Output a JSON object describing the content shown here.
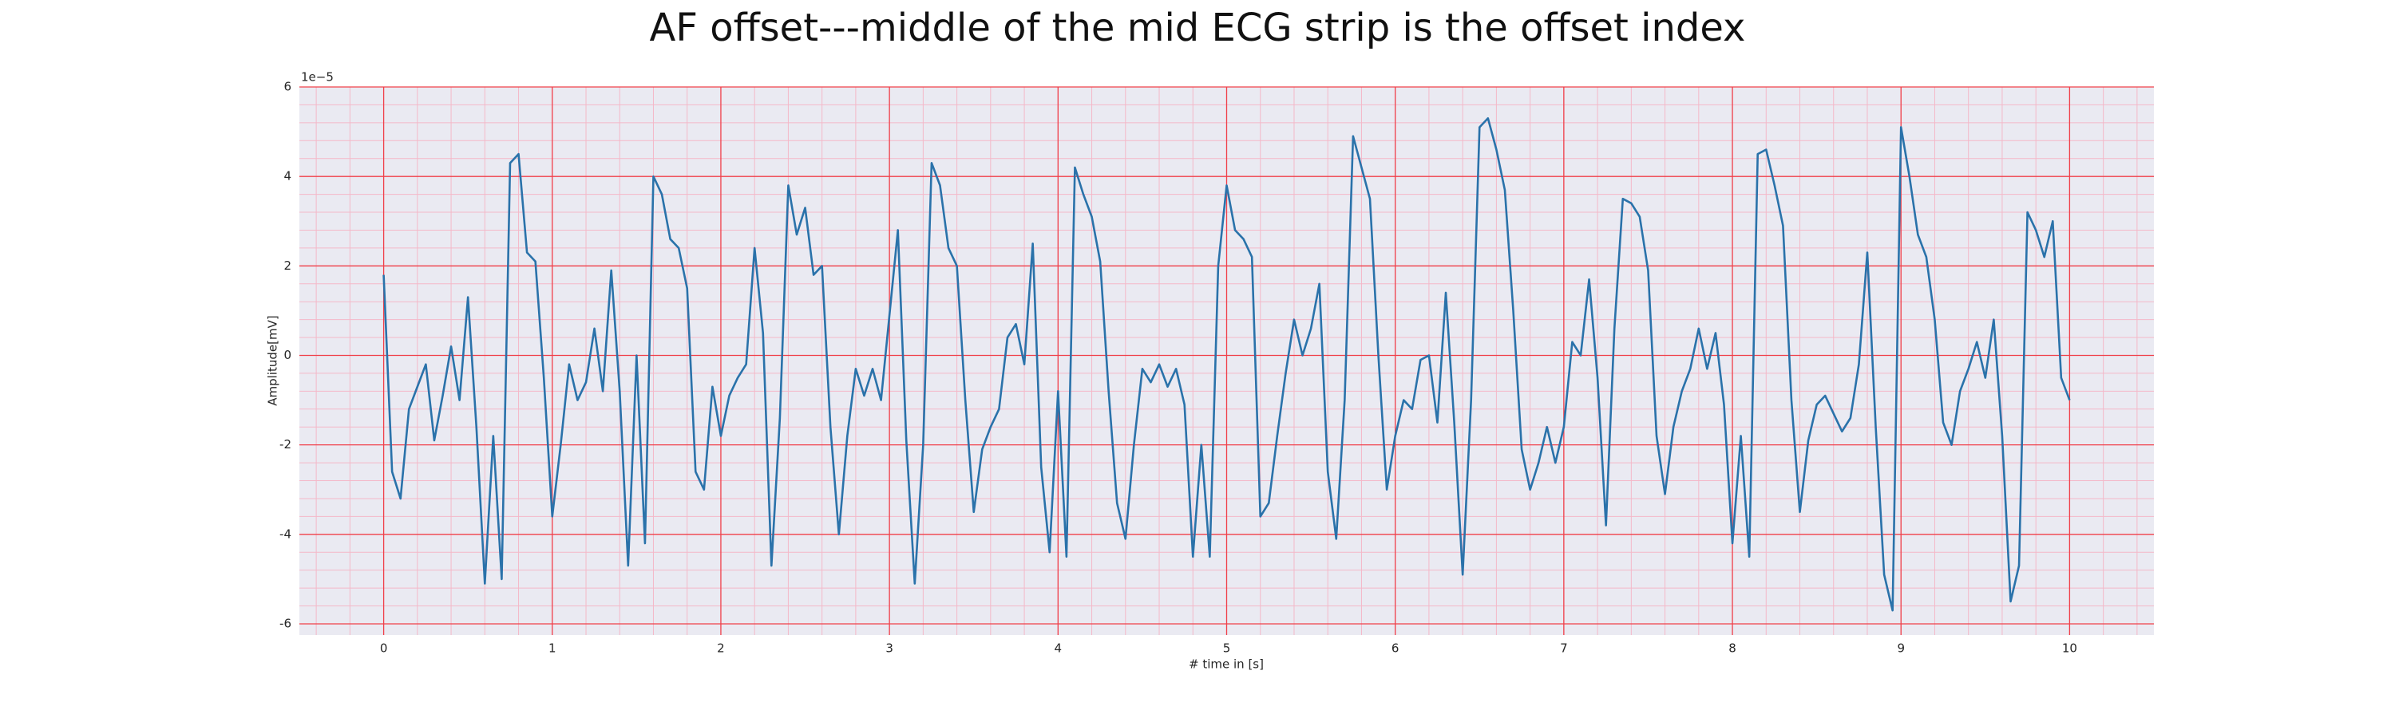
{
  "chart_data": {
    "type": "line",
    "title": "AF offset---middle of the mid ECG strip is the offset index",
    "xlabel": "# time in [s]",
    "ylabel": "Amplitude[mV]",
    "y_offset_label": "1e−5",
    "color": "#2a72aa",
    "grid": true,
    "minor_grid": true,
    "xlim": [
      -0.5,
      10.5
    ],
    "ylim": [
      -6.25,
      6.0
    ],
    "xticks": [
      0,
      1,
      2,
      3,
      4,
      5,
      6,
      7,
      8,
      9,
      10
    ],
    "yticks": [
      -6,
      -4,
      -2,
      0,
      2,
      4,
      6
    ],
    "x": [
      0,
      0.05,
      0.1,
      0.15,
      0.2,
      0.25,
      0.3,
      0.35,
      0.4,
      0.45,
      0.5,
      0.55,
      0.6,
      0.65,
      0.7,
      0.75,
      0.8,
      0.85,
      0.9,
      0.95,
      1,
      1.05,
      1.1,
      1.15,
      1.2,
      1.25,
      1.3,
      1.35,
      1.4,
      1.45,
      1.5,
      1.55,
      1.6,
      1.65,
      1.7,
      1.75,
      1.8,
      1.85,
      1.9,
      1.95,
      2,
      2.05,
      2.1,
      2.15,
      2.2,
      2.25,
      2.3,
      2.35,
      2.4,
      2.45,
      2.5,
      2.55,
      2.6,
      2.65,
      2.7,
      2.75,
      2.8,
      2.85,
      2.9,
      2.95,
      3,
      3.05,
      3.1,
      3.15,
      3.2,
      3.25,
      3.3,
      3.35,
      3.4,
      3.45,
      3.5,
      3.55,
      3.6,
      3.65,
      3.7,
      3.75,
      3.8,
      3.85,
      3.9,
      3.95,
      4,
      4.05,
      4.1,
      4.15,
      4.2,
      4.25,
      4.3,
      4.35,
      4.4,
      4.45,
      4.5,
      4.55,
      4.6,
      4.65,
      4.7,
      4.75,
      4.8,
      4.85,
      4.9,
      4.95,
      5,
      5.05,
      5.1,
      5.15,
      5.2,
      5.25,
      5.3,
      5.35,
      5.4,
      5.45,
      5.5,
      5.55,
      5.6,
      5.65,
      5.7,
      5.75,
      5.8,
      5.85,
      5.9,
      5.95,
      6,
      6.05,
      6.1,
      6.15,
      6.2,
      6.25,
      6.3,
      6.35,
      6.4,
      6.45,
      6.5,
      6.55,
      6.6,
      6.65,
      6.7,
      6.75,
      6.8,
      6.85,
      6.9,
      6.95,
      7,
      7.05,
      7.1,
      7.15,
      7.2,
      7.25,
      7.3,
      7.35,
      7.4,
      7.45,
      7.5,
      7.55,
      7.6,
      7.65,
      7.7,
      7.75,
      7.8,
      7.85,
      7.9,
      7.95,
      8,
      8.05,
      8.1,
      8.15,
      8.2,
      8.25,
      8.3,
      8.35,
      8.4,
      8.45,
      8.5,
      8.55,
      8.6,
      8.65,
      8.7,
      8.75,
      8.8,
      8.85,
      8.9,
      8.95,
      9,
      9.05,
      9.1,
      9.15,
      9.2,
      9.25,
      9.3,
      9.35,
      9.4,
      9.45,
      9.5,
      9.55,
      9.6,
      9.65,
      9.7,
      9.75,
      9.8,
      9.85,
      9.9,
      9.95,
      10
    ],
    "values": [
      1.8,
      -2.6,
      -3.2,
      -1.2,
      -0.7,
      -0.2,
      -1.9,
      -0.9,
      0.2,
      -1.0,
      1.3,
      -1.6,
      -5.1,
      -1.8,
      -5.0,
      4.3,
      4.5,
      2.3,
      2.1,
      -0.5,
      -3.6,
      -2.0,
      -0.2,
      -1.0,
      -0.6,
      0.6,
      -0.8,
      1.9,
      -0.8,
      -4.7,
      0.0,
      -4.2,
      4.0,
      3.6,
      2.6,
      2.4,
      1.5,
      -2.6,
      -3.0,
      -0.7,
      -1.8,
      -0.9,
      -0.5,
      -0.2,
      2.4,
      0.5,
      -4.7,
      -1.4,
      3.8,
      2.7,
      3.3,
      1.8,
      2.0,
      -1.6,
      -4.0,
      -1.8,
      -0.3,
      -0.9,
      -0.3,
      -1.0,
      0.9,
      2.8,
      -1.9,
      -5.1,
      -2.0,
      4.3,
      3.8,
      2.4,
      2.0,
      -1.0,
      -3.5,
      -2.1,
      -1.6,
      -1.2,
      0.4,
      0.7,
      -0.2,
      2.5,
      -2.5,
      -4.4,
      -0.8,
      -4.5,
      4.2,
      3.6,
      3.1,
      2.1,
      -0.8,
      -3.3,
      -4.1,
      -2.0,
      -0.3,
      -0.6,
      -0.2,
      -0.7,
      -0.3,
      -1.1,
      -4.5,
      -2.0,
      -4.5,
      2.0,
      3.8,
      2.8,
      2.6,
      2.2,
      -3.6,
      -3.3,
      -1.8,
      -0.4,
      0.8,
      0.0,
      0.6,
      1.6,
      -2.6,
      -4.1,
      -1.0,
      4.9,
      4.2,
      3.5,
      0.0,
      -3.0,
      -1.8,
      -1.0,
      -1.2,
      -0.1,
      0.0,
      -1.5,
      1.4,
      -1.5,
      -4.9,
      -1.0,
      5.1,
      5.3,
      4.6,
      3.7,
      1.0,
      -2.1,
      -3.0,
      -2.4,
      -1.6,
      -2.4,
      -1.6,
      0.3,
      0.0,
      1.7,
      -0.5,
      -3.8,
      0.6,
      3.5,
      3.4,
      3.1,
      1.9,
      -1.8,
      -3.1,
      -1.6,
      -0.8,
      -0.3,
      0.6,
      -0.3,
      0.5,
      -1.1,
      -4.2,
      -1.8,
      -4.5,
      4.5,
      4.6,
      3.8,
      2.9,
      -1.0,
      -3.5,
      -1.9,
      -1.1,
      -0.9,
      -1.3,
      -1.7,
      -1.4,
      -0.2,
      2.3,
      -1.6,
      -4.9,
      -5.7,
      5.1,
      4.0,
      2.7,
      2.2,
      0.8,
      -1.5,
      -2.0,
      -0.8,
      -0.3,
      0.3,
      -0.5,
      0.8,
      -1.8,
      -5.5,
      -4.7,
      3.2,
      2.8,
      2.2,
      3.0,
      -0.5,
      -1.0
    ]
  }
}
